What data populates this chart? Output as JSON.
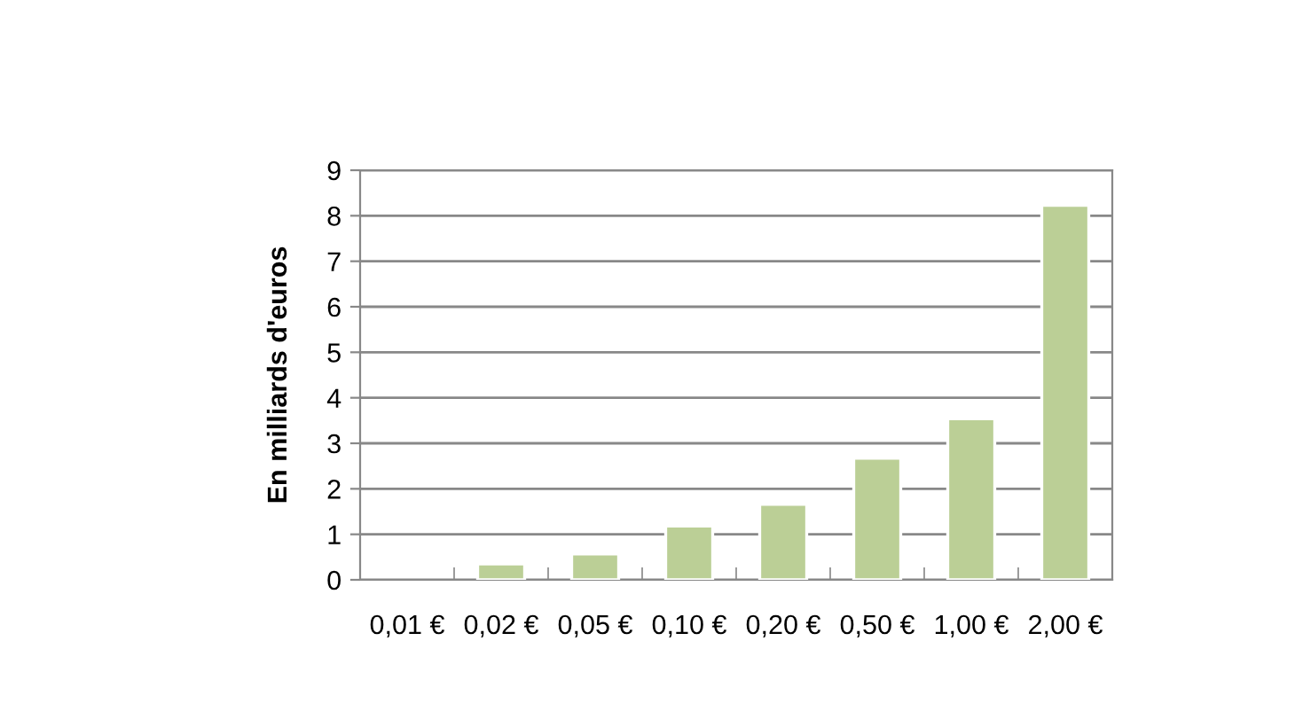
{
  "chart_data": {
    "type": "bar",
    "ylabel": "En milliards d'euros",
    "categories": [
      "0,01 €",
      "0,02 €",
      "0,05 €",
      "0,10 €",
      "0,20 €",
      "0,50 €",
      "1,00 €",
      "2,00 €"
    ],
    "values": [
      null,
      0.35,
      0.57,
      1.18,
      1.66,
      2.67,
      3.54,
      8.23
    ],
    "color": "#bbcf96",
    "ylim": [
      0,
      9
    ],
    "yticks": [
      0,
      1,
      2,
      3,
      4,
      5,
      6,
      7,
      8,
      9
    ],
    "grid": "y"
  }
}
